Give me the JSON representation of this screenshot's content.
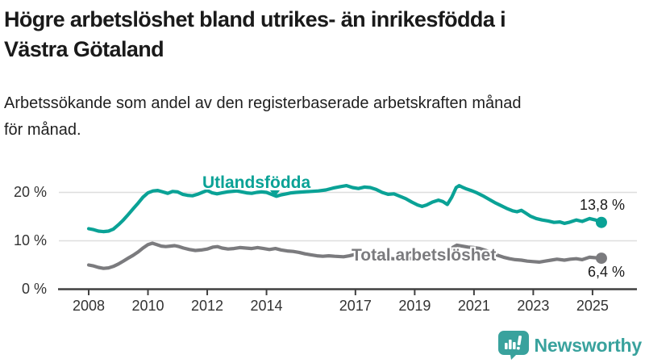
{
  "header": {
    "title_line1": "Högre arbetslöshet bland utrikes- än inrikesfödda i",
    "title_line2": "Västra Götaland",
    "subtitle_line1": "Arbetssökande som andel av den registerbaserade arbetskraften månad",
    "subtitle_line2": "för månad."
  },
  "chart_data": {
    "type": "line",
    "title": "Högre arbetslöshet bland utrikes- än inrikesfödda i Västra Götaland",
    "subtitle": "Arbetssökande som andel av den registerbaserade arbetskraften månad för månad.",
    "xlim": [
      2007.0,
      2026.5
    ],
    "ylim": [
      0,
      24
    ],
    "grid": "horizontal",
    "grid_color": "#dedede",
    "axis_color": "#404040",
    "x_ticks": [
      {
        "value": 2008,
        "label": "2008"
      },
      {
        "value": 2010,
        "label": "2010"
      },
      {
        "value": 2012,
        "label": "2012"
      },
      {
        "value": 2014,
        "label": "2014"
      },
      {
        "value": 2017,
        "label": "2017"
      },
      {
        "value": 2019,
        "label": "2019"
      },
      {
        "value": 2021,
        "label": "2021"
      },
      {
        "value": 2023,
        "label": "2023"
      },
      {
        "value": 2025,
        "label": "2025"
      }
    ],
    "y_ticks": [
      {
        "value": 0,
        "label": "0 %"
      },
      {
        "value": 10,
        "label": "10 %"
      },
      {
        "value": 20,
        "label": "20 %"
      }
    ],
    "series": [
      {
        "name": "Utlandsfödda",
        "color": "#0aa296",
        "end_label": "13,8 %",
        "end_value": 13.8,
        "points": [
          [
            2008.0,
            12.5
          ],
          [
            2008.17,
            12.3
          ],
          [
            2008.33,
            12.0
          ],
          [
            2008.5,
            11.9
          ],
          [
            2008.67,
            12.0
          ],
          [
            2008.83,
            12.4
          ],
          [
            2009.0,
            13.3
          ],
          [
            2009.17,
            14.3
          ],
          [
            2009.33,
            15.4
          ],
          [
            2009.5,
            16.6
          ],
          [
            2009.67,
            17.8
          ],
          [
            2009.83,
            19.0
          ],
          [
            2010.0,
            19.9
          ],
          [
            2010.17,
            20.3
          ],
          [
            2010.33,
            20.4
          ],
          [
            2010.5,
            20.1
          ],
          [
            2010.67,
            19.8
          ],
          [
            2010.83,
            20.2
          ],
          [
            2011.0,
            20.1
          ],
          [
            2011.17,
            19.6
          ],
          [
            2011.33,
            19.4
          ],
          [
            2011.5,
            19.3
          ],
          [
            2011.67,
            19.6
          ],
          [
            2011.83,
            20.0
          ],
          [
            2012.0,
            20.4
          ],
          [
            2012.17,
            19.9
          ],
          [
            2012.33,
            19.7
          ],
          [
            2012.5,
            19.9
          ],
          [
            2012.67,
            20.1
          ],
          [
            2012.83,
            20.2
          ],
          [
            2013.0,
            20.3
          ],
          [
            2013.17,
            20.1
          ],
          [
            2013.33,
            19.9
          ],
          [
            2013.5,
            19.8
          ],
          [
            2013.67,
            20.0
          ],
          [
            2013.83,
            20.1
          ],
          [
            2014.0,
            20.0
          ],
          [
            2014.17,
            19.6
          ],
          [
            2014.33,
            19.2
          ],
          [
            2014.5,
            19.5
          ],
          [
            2014.67,
            19.7
          ],
          [
            2014.83,
            19.9
          ],
          [
            2015.0,
            20.0
          ],
          [
            2015.25,
            20.1
          ],
          [
            2015.5,
            20.2
          ],
          [
            2015.75,
            20.3
          ],
          [
            2016.0,
            20.5
          ],
          [
            2016.25,
            20.9
          ],
          [
            2016.5,
            21.2
          ],
          [
            2016.7,
            21.4
          ],
          [
            2016.9,
            21.0
          ],
          [
            2017.1,
            20.8
          ],
          [
            2017.3,
            21.1
          ],
          [
            2017.5,
            21.0
          ],
          [
            2017.7,
            20.6
          ],
          [
            2017.9,
            20.0
          ],
          [
            2018.1,
            19.6
          ],
          [
            2018.3,
            19.7
          ],
          [
            2018.5,
            19.2
          ],
          [
            2018.7,
            18.7
          ],
          [
            2018.9,
            18.0
          ],
          [
            2019.1,
            17.4
          ],
          [
            2019.25,
            17.1
          ],
          [
            2019.4,
            17.4
          ],
          [
            2019.6,
            18.0
          ],
          [
            2019.8,
            18.4
          ],
          [
            2019.95,
            18.1
          ],
          [
            2020.1,
            17.5
          ],
          [
            2020.25,
            19.0
          ],
          [
            2020.4,
            21.0
          ],
          [
            2020.5,
            21.4
          ],
          [
            2020.6,
            21.1
          ],
          [
            2020.75,
            20.7
          ],
          [
            2020.9,
            20.4
          ],
          [
            2021.1,
            19.9
          ],
          [
            2021.3,
            19.3
          ],
          [
            2021.5,
            18.6
          ],
          [
            2021.7,
            17.9
          ],
          [
            2021.9,
            17.3
          ],
          [
            2022.1,
            16.7
          ],
          [
            2022.3,
            16.2
          ],
          [
            2022.45,
            16.0
          ],
          [
            2022.6,
            16.3
          ],
          [
            2022.75,
            15.7
          ],
          [
            2022.9,
            15.1
          ],
          [
            2023.1,
            14.6
          ],
          [
            2023.3,
            14.3
          ],
          [
            2023.5,
            14.1
          ],
          [
            2023.7,
            13.8
          ],
          [
            2023.9,
            13.9
          ],
          [
            2024.05,
            13.6
          ],
          [
            2024.2,
            13.8
          ],
          [
            2024.45,
            14.3
          ],
          [
            2024.65,
            14.0
          ],
          [
            2024.9,
            14.6
          ],
          [
            2025.1,
            14.3
          ],
          [
            2025.3,
            13.8
          ]
        ]
      },
      {
        "name": "Total arbetslöshet",
        "color": "#7b7b7e",
        "end_label": "6,4 %",
        "end_value": 6.4,
        "points": [
          [
            2008.0,
            5.0
          ],
          [
            2008.17,
            4.8
          ],
          [
            2008.33,
            4.5
          ],
          [
            2008.5,
            4.3
          ],
          [
            2008.67,
            4.4
          ],
          [
            2008.83,
            4.7
          ],
          [
            2009.0,
            5.2
          ],
          [
            2009.17,
            5.8
          ],
          [
            2009.33,
            6.4
          ],
          [
            2009.5,
            7.0
          ],
          [
            2009.67,
            7.7
          ],
          [
            2009.83,
            8.5
          ],
          [
            2010.0,
            9.2
          ],
          [
            2010.15,
            9.5
          ],
          [
            2010.3,
            9.2
          ],
          [
            2010.45,
            8.9
          ],
          [
            2010.6,
            8.8
          ],
          [
            2010.75,
            8.9
          ],
          [
            2010.9,
            9.0
          ],
          [
            2011.05,
            8.8
          ],
          [
            2011.2,
            8.5
          ],
          [
            2011.4,
            8.2
          ],
          [
            2011.6,
            8.0
          ],
          [
            2011.8,
            8.1
          ],
          [
            2012.0,
            8.3
          ],
          [
            2012.2,
            8.7
          ],
          [
            2012.35,
            8.8
          ],
          [
            2012.5,
            8.5
          ],
          [
            2012.7,
            8.3
          ],
          [
            2012.9,
            8.4
          ],
          [
            2013.1,
            8.6
          ],
          [
            2013.3,
            8.5
          ],
          [
            2013.5,
            8.4
          ],
          [
            2013.7,
            8.6
          ],
          [
            2013.9,
            8.4
          ],
          [
            2014.1,
            8.2
          ],
          [
            2014.3,
            8.4
          ],
          [
            2014.5,
            8.1
          ],
          [
            2014.7,
            7.9
          ],
          [
            2014.9,
            7.8
          ],
          [
            2015.1,
            7.6
          ],
          [
            2015.3,
            7.3
          ],
          [
            2015.5,
            7.1
          ],
          [
            2015.7,
            6.9
          ],
          [
            2015.9,
            6.8
          ],
          [
            2016.1,
            6.9
          ],
          [
            2016.3,
            6.8
          ],
          [
            2016.6,
            6.7
          ],
          [
            2016.8,
            6.9
          ],
          [
            2017.0,
            7.2
          ],
          [
            2017.2,
            7.0
          ],
          [
            2017.4,
            6.9
          ],
          [
            2017.6,
            6.8
          ],
          [
            2017.8,
            6.6
          ],
          [
            2018.0,
            6.5
          ],
          [
            2018.25,
            6.3
          ],
          [
            2018.5,
            6.2
          ],
          [
            2018.75,
            6.3
          ],
          [
            2019.0,
            6.4
          ],
          [
            2019.25,
            6.5
          ],
          [
            2019.5,
            6.7
          ],
          [
            2019.75,
            7.0
          ],
          [
            2019.95,
            7.2
          ],
          [
            2020.1,
            7.7
          ],
          [
            2020.25,
            8.5
          ],
          [
            2020.42,
            9.1
          ],
          [
            2020.6,
            8.9
          ],
          [
            2020.8,
            8.7
          ],
          [
            2021.0,
            8.6
          ],
          [
            2021.2,
            8.4
          ],
          [
            2021.4,
            8.0
          ],
          [
            2021.6,
            7.5
          ],
          [
            2021.8,
            7.0
          ],
          [
            2022.0,
            6.6
          ],
          [
            2022.2,
            6.3
          ],
          [
            2022.4,
            6.1
          ],
          [
            2022.6,
            6.0
          ],
          [
            2022.8,
            5.8
          ],
          [
            2023.0,
            5.7
          ],
          [
            2023.2,
            5.6
          ],
          [
            2023.4,
            5.8
          ],
          [
            2023.6,
            6.0
          ],
          [
            2023.8,
            6.2
          ],
          [
            2024.05,
            6.0
          ],
          [
            2024.25,
            6.2
          ],
          [
            2024.45,
            6.3
          ],
          [
            2024.65,
            6.1
          ],
          [
            2024.9,
            6.6
          ],
          [
            2025.1,
            6.5
          ],
          [
            2025.3,
            6.4
          ]
        ]
      }
    ]
  },
  "footer": {
    "brand": "Newsworthy",
    "brand_color": "#39a29d"
  }
}
